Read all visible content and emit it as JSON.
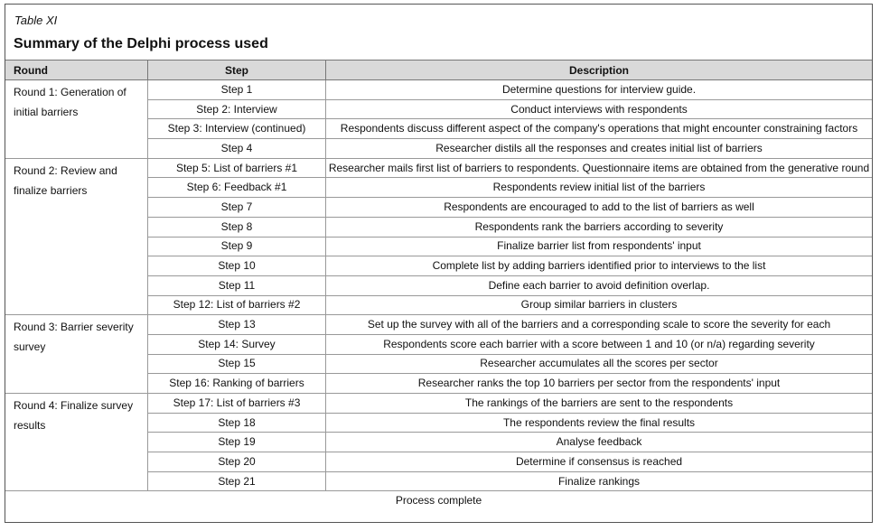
{
  "title": {
    "label": "Table XI",
    "text": "Summary of the Delphi process used"
  },
  "table": {
    "headers": [
      "Round",
      "Step",
      "Description"
    ],
    "rounds": [
      {
        "label": "Round 1: Generation of initial barriers",
        "steps": [
          {
            "step": "Step 1",
            "description": "Determine questions for interview guide."
          },
          {
            "step": "Step 2: Interview",
            "description": "Conduct interviews with respondents"
          },
          {
            "step": "Step 3: Interview (continued)",
            "description": "Respondents discuss different aspect of the company's operations that might encounter constraining factors"
          },
          {
            "step": "Step 4",
            "description": "Researcher distils all the responses and creates initial list of barriers"
          }
        ]
      },
      {
        "label": "Round 2: Review and finalize barriers",
        "steps": [
          {
            "step": "Step 5: List of barriers #1",
            "description": "Researcher mails first list of barriers to respondents. Questionnaire items are obtained from the generative round"
          },
          {
            "step": "Step 6: Feedback #1",
            "description": "Respondents review initial list of the barriers"
          },
          {
            "step": "Step 7",
            "description": "Respondents are encouraged to add to the list of barriers as well"
          },
          {
            "step": "Step 8",
            "description": "Respondents rank the barriers according to severity"
          },
          {
            "step": "Step 9",
            "description": "Finalize barrier list from respondents' input"
          },
          {
            "step": "Step 10",
            "description": "Complete list by adding barriers identified prior to interviews to the list"
          },
          {
            "step": "Step 11",
            "description": "Define each barrier to avoid definition overlap."
          },
          {
            "step": "Step 12: List of barriers #2",
            "description": "Group similar barriers in clusters"
          }
        ]
      },
      {
        "label": "Round 3: Barrier severity survey",
        "steps": [
          {
            "step": "Step 13",
            "description": "Set up the survey with all of the barriers and a corresponding scale to score the severity for each"
          },
          {
            "step": "Step 14: Survey",
            "description": "Respondents score each barrier with a score between 1 and 10 (or n/a) regarding severity"
          },
          {
            "step": "Step 15",
            "description": "Researcher accumulates all the scores per sector"
          },
          {
            "step": "Step 16: Ranking of barriers",
            "description": "Researcher ranks the top 10 barriers per sector from the respondents' input"
          }
        ]
      },
      {
        "label": "Round 4: Finalize survey results",
        "steps": [
          {
            "step": "Step 17: List of barriers #3",
            "description": "The rankings of the barriers are sent to the respondents"
          },
          {
            "step": "Step 18",
            "description": "The respondents review the final results"
          },
          {
            "step": "Step 19",
            "description": "Analyse feedback"
          },
          {
            "step": "Step 20",
            "description": "Determine if consensus is reached"
          },
          {
            "step": "Step 21",
            "description": "Finalize rankings"
          }
        ]
      }
    ],
    "footer": "Process complete"
  }
}
